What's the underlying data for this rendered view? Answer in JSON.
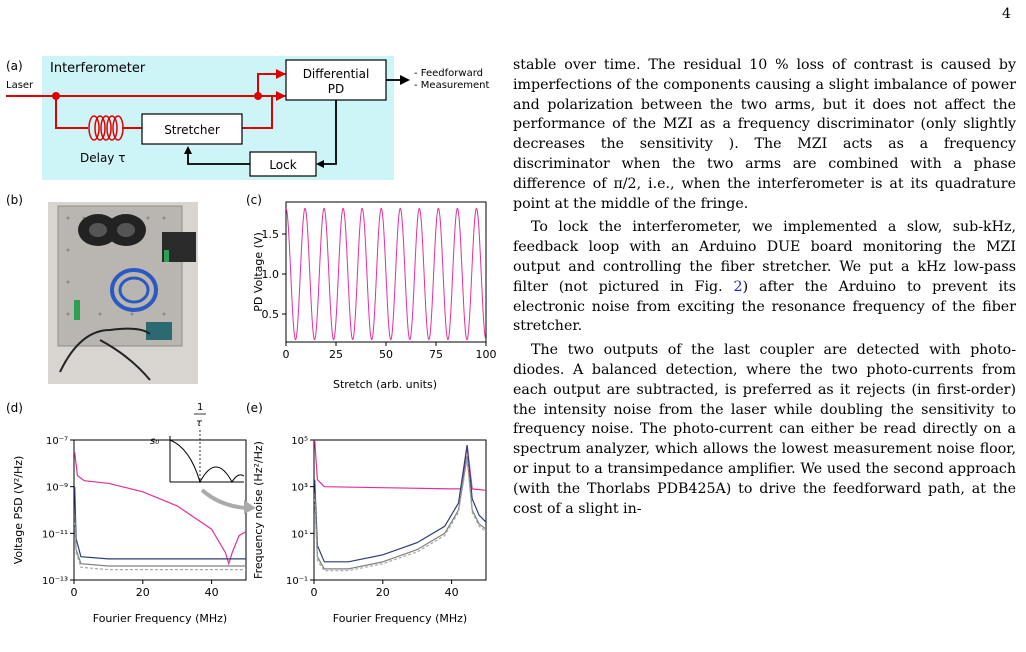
{
  "page_number": "4",
  "panels": {
    "a": {
      "label": "(a)",
      "title": "Interferometer",
      "laser": "Laser",
      "pd": "Differential\nPD",
      "pd_line1": "Differential",
      "pd_line2": "PD",
      "outputs": [
        "- Feedforward",
        "- Measurement"
      ],
      "stretcher": "Stretcher",
      "lock": "Lock",
      "delay": "Delay τ"
    },
    "b": {
      "label": "(b)"
    },
    "c": {
      "label": "(c)"
    },
    "d": {
      "label": "(d)"
    },
    "e": {
      "label": "(e)"
    }
  },
  "chart_data": [
    {
      "id": "c",
      "type": "line",
      "xlabel": "Stretch (arb. units)",
      "ylabel": "PD Voltage (V)",
      "xlim": [
        0,
        100
      ],
      "ylim": [
        0.15,
        1.9
      ],
      "xticks": [
        "0",
        "25",
        "50",
        "75",
        "100"
      ],
      "yticks": [
        "0.5",
        "1.0",
        "1.5"
      ],
      "series": [
        {
          "color": "#e0309f",
          "min": 0.18,
          "max": 1.82,
          "fringes": 10.5
        }
      ]
    },
    {
      "id": "d",
      "type": "line",
      "xlabel": "Fourier Frequency (MHz)",
      "ylabel": "Voltage PSD (V²/Hz)",
      "yscale": "log",
      "xlim": [
        0,
        50
      ],
      "ylim": [
        1e-13,
        1e-07
      ],
      "xticks": [
        "0",
        "20",
        "40"
      ],
      "yticks": [
        "10⁻¹³",
        "10⁻¹¹",
        "10⁻⁹",
        "10⁻⁷"
      ],
      "inset_labels": [
        "s₀",
        "1",
        "τ"
      ],
      "series": [
        {
          "color": "#e0309f",
          "points": [
            [
              0.2,
              3e-08
            ],
            [
              1,
              3e-09
            ],
            [
              3,
              1.8e-09
            ],
            [
              10,
              1.4e-09
            ],
            [
              20,
              6e-10
            ],
            [
              30,
              1.5e-10
            ],
            [
              40,
              1.5e-11
            ],
            [
              44,
              1.5e-12
            ],
            [
              45,
              5e-13
            ],
            [
              46,
              1.5e-12
            ],
            [
              48,
              8e-12
            ],
            [
              50,
              1.2e-11
            ]
          ]
        },
        {
          "color": "#2a3f7a",
          "points": [
            [
              0.2,
              1e-09
            ],
            [
              0.6,
              6e-12
            ],
            [
              2,
              1e-12
            ],
            [
              10,
              8e-13
            ],
            [
              30,
              8e-13
            ],
            [
              40,
              8e-13
            ],
            [
              50,
              8e-13
            ]
          ]
        },
        {
          "color": "#808080",
          "points": [
            [
              0.2,
              6e-11
            ],
            [
              0.6,
              2e-12
            ],
            [
              2,
              5e-13
            ],
            [
              10,
              4e-13
            ],
            [
              30,
              4e-13
            ],
            [
              50,
              4e-13
            ]
          ]
        },
        {
          "color": "#a8a8a8",
          "points": [
            [
              0.2,
              3e-11
            ],
            [
              0.6,
              1.5e-12
            ],
            [
              2,
              3.5e-13
            ],
            [
              10,
              2.8e-13
            ],
            [
              30,
              2.8e-13
            ],
            [
              50,
              2.8e-13
            ]
          ]
        }
      ]
    },
    {
      "id": "e",
      "type": "line",
      "xlabel": "Fourier Frequency (MHz)",
      "ylabel": "Frequency noise (Hz²/Hz)",
      "yscale": "log",
      "xlim": [
        0,
        50
      ],
      "ylim": [
        0.1,
        100000
      ],
      "xticks": [
        "0",
        "20",
        "40"
      ],
      "yticks": [
        "10⁻¹",
        "10¹",
        "10³",
        "10⁵"
      ],
      "series": [
        {
          "color": "#e0309f",
          "points": [
            [
              0.2,
              100000
            ],
            [
              1,
              2000
            ],
            [
              3,
              1000
            ],
            [
              20,
              900
            ],
            [
              40,
              800
            ],
            [
              43,
              800
            ],
            [
              44.5,
              60000
            ],
            [
              46,
              800
            ],
            [
              50,
              700
            ]
          ]
        },
        {
          "color": "#2a3f7a",
          "points": [
            [
              0.2,
              2000
            ],
            [
              1,
              3
            ],
            [
              3,
              0.6
            ],
            [
              10,
              0.6
            ],
            [
              20,
              1.2
            ],
            [
              30,
              4
            ],
            [
              38,
              20
            ],
            [
              42,
              200
            ],
            [
              44.5,
              60000
            ],
            [
              46,
              300
            ],
            [
              48,
              60
            ],
            [
              50,
              30
            ]
          ]
        },
        {
          "color": "#808080",
          "points": [
            [
              0.2,
              500
            ],
            [
              1,
              1
            ],
            [
              3,
              0.3
            ],
            [
              10,
              0.3
            ],
            [
              20,
              0.6
            ],
            [
              30,
              2
            ],
            [
              38,
              10
            ],
            [
              42,
              100
            ],
            [
              44.5,
              20000
            ],
            [
              46,
              100
            ],
            [
              48,
              25
            ],
            [
              50,
              15
            ]
          ]
        },
        {
          "color": "#a8a8a8",
          "points": [
            [
              0.2,
              300
            ],
            [
              1,
              0.7
            ],
            [
              3,
              0.25
            ],
            [
              10,
              0.25
            ],
            [
              20,
              0.5
            ],
            [
              30,
              1.6
            ],
            [
              38,
              8
            ],
            [
              42,
              80
            ],
            [
              44.5,
              15000
            ],
            [
              46,
              80
            ],
            [
              48,
              20
            ],
            [
              50,
              12
            ]
          ]
        }
      ]
    }
  ],
  "text": {
    "p1": "stable over time.  The residual 10 % loss of contrast is caused by imperfections of the components causing a slight imbalance of power and polarization between the two arms, but it does not affect the performance of the MZI as a frequency discriminator (only slightly decreases the sensitivity ). The MZI acts as a frequency discriminator when the two arms are combined with a phase difference of π/2, i.e., when the interferometer is at its quadrature point at the middle of the fringe.",
    "p2a": "To lock the interferometer, we implemented a slow, sub-kHz, feedback loop with an Arduino DUE board monitoring the MZI output and controlling the fiber stretcher.  We put a kHz low-pass filter (not pictured in Fig. ",
    "p2ref": "2",
    "p2b": ") after the Arduino to prevent its electronic noise from exciting the resonance frequency of the fiber stretcher.",
    "p3": "The two outputs of the last coupler are detected with photo-diodes.  A balanced detection, where the two photo-currents from each output are subtracted, is preferred as it rejects (in first-order) the intensity noise from the laser while doubling the sensitivity to frequency noise. The photo-current can either be read directly on a spectrum analyzer, which allows the lowest measurement noise floor, or input to a transimpedance amplifier. We used the second approach (with the Thorlabs PDB425A) to drive the feedforward path, at the cost of a slight in-"
  }
}
